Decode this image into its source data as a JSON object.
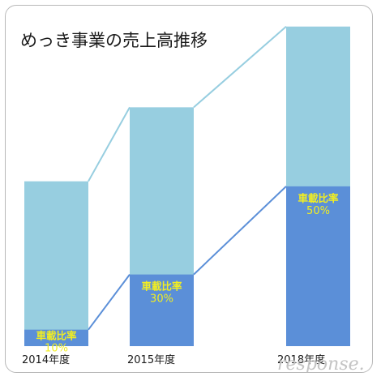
{
  "chart_data": {
    "type": "bar",
    "title": "めっき事業の売上高推移",
    "categories": [
      "2014年度",
      "2015年度",
      "2018年度"
    ],
    "total_sales_relative": [
      0.49,
      0.71,
      0.95
    ],
    "automotive_ratio_percent": [
      10,
      30,
      50
    ],
    "ratio_label": "車載比率",
    "ratio_value_labels": [
      "10%",
      "30%",
      "50%"
    ],
    "series": [
      {
        "values": [
          0.049,
          0.213,
          0.475
        ]
      },
      {
        "values": [
          0.441,
          0.497,
          0.475
        ]
      }
    ],
    "xlabel": "",
    "ylabel": "",
    "ylim": [
      0,
      1
    ],
    "grid": false,
    "colors": {
      "total": "#97cee0",
      "automotive": "#5b8fd8",
      "connector_total": "#97cee0",
      "connector_auto": "#5b8fd8",
      "ratio_text": "#f2ee21"
    }
  },
  "watermark": "response."
}
